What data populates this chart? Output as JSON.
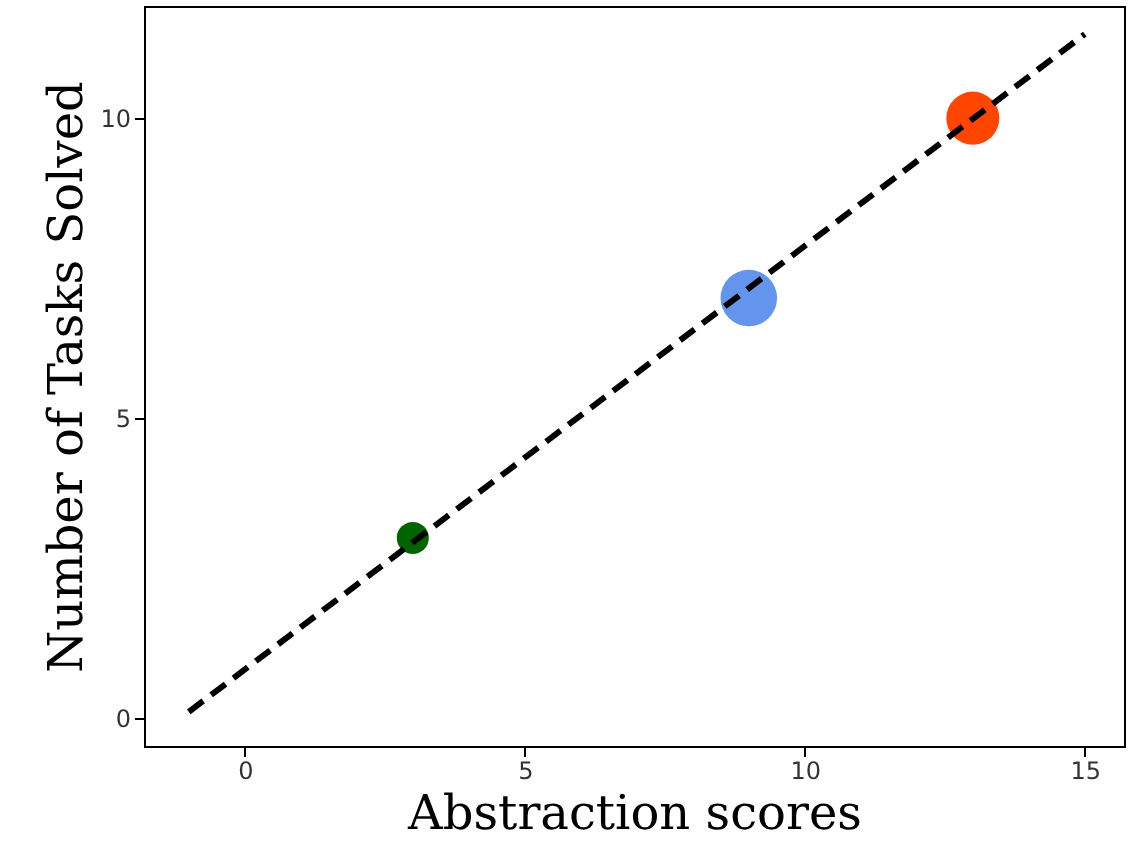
{
  "chart_data": {
    "type": "bubble",
    "xlabel": "Abstraction scores",
    "ylabel": "Number of Tasks Solved",
    "xlim": [
      -1.8,
      15.7
    ],
    "ylim": [
      -0.47,
      11.87
    ],
    "xticks": [
      0,
      5,
      10,
      15
    ],
    "yticks": [
      0,
      5,
      10
    ],
    "grid": false,
    "series": [
      {
        "x": [
          3,
          9,
          13
        ],
        "values": [
          3,
          7,
          10
        ],
        "sizes": [
          0.32,
          1,
          0.88
        ],
        "colors": [
          "#006400",
          "#6495ed",
          "#ff4500"
        ]
      },
      {
        "type": "line",
        "x": [
          -1,
          15
        ],
        "values": [
          0.1,
          11.4
        ],
        "color": "#000000",
        "line_style": "dashed",
        "marker": "none"
      }
    ]
  }
}
